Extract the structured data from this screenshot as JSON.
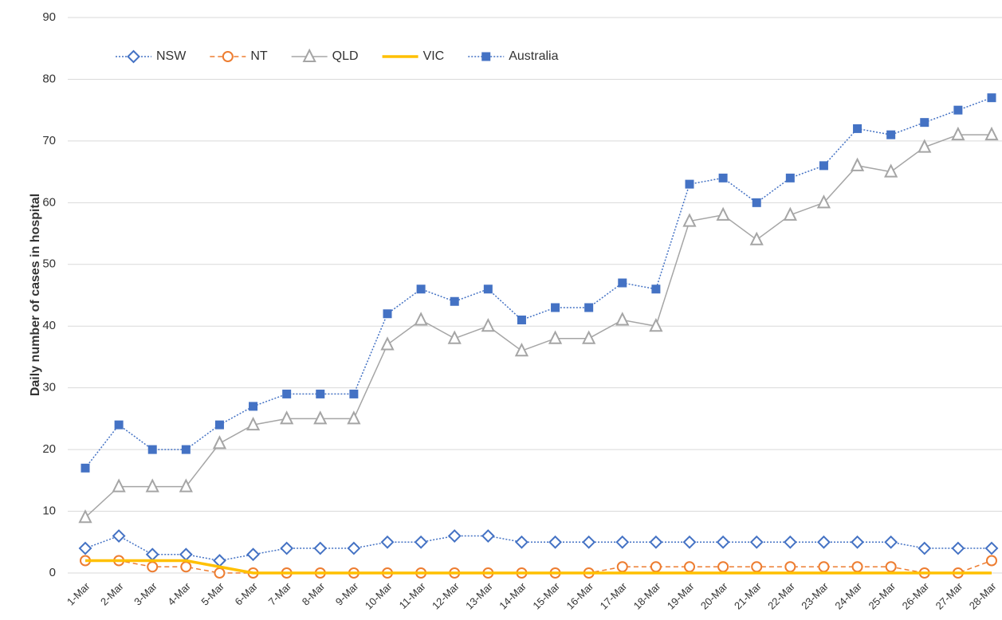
{
  "chart_data": {
    "type": "line",
    "y_label": "Daily number of cases in hospital",
    "categories": [
      "1-Mar",
      "2-Mar",
      "3-Mar",
      "4-Mar",
      "5-Mar",
      "6-Mar",
      "7-Mar",
      "8-Mar",
      "9-Mar",
      "10-Mar",
      "11-Mar",
      "12-Mar",
      "13-Mar",
      "14-Mar",
      "15-Mar",
      "16-Mar",
      "17-Mar",
      "18-Mar",
      "19-Mar",
      "20-Mar",
      "21-Mar",
      "22-Mar",
      "23-Mar",
      "24-Mar",
      "25-Mar",
      "26-Mar",
      "27-Mar",
      "28-Mar"
    ],
    "series": [
      {
        "name": "NSW",
        "color": "#4472c4",
        "dash": "dotted",
        "marker": "diamond",
        "values": [
          4,
          6,
          3,
          3,
          2,
          3,
          4,
          4,
          4,
          5,
          5,
          6,
          6,
          5,
          5,
          5,
          5,
          5,
          5,
          5,
          5,
          5,
          5,
          5,
          5,
          4,
          4,
          4
        ]
      },
      {
        "name": "NT",
        "color": "#ed7d31",
        "dash": "dashed",
        "marker": "circle",
        "values": [
          2,
          2,
          1,
          1,
          0,
          0,
          0,
          0,
          0,
          0,
          0,
          0,
          0,
          0,
          0,
          0,
          1,
          1,
          1,
          1,
          1,
          1,
          1,
          1,
          1,
          0,
          0,
          2
        ]
      },
      {
        "name": "QLD",
        "color": "#a5a5a5",
        "dash": "solid",
        "marker": "triangle",
        "values": [
          9,
          14,
          14,
          14,
          21,
          24,
          25,
          25,
          25,
          37,
          41,
          38,
          40,
          36,
          38,
          38,
          41,
          40,
          57,
          58,
          54,
          58,
          60,
          66,
          65,
          69,
          71,
          71
        ]
      },
      {
        "name": "VIC",
        "color": "#ffc000",
        "dash": "solid",
        "marker": "none",
        "values": [
          2,
          2,
          2,
          2,
          1,
          0,
          0,
          0,
          0,
          0,
          0,
          0,
          0,
          0,
          0,
          0,
          0,
          0,
          0,
          0,
          0,
          0,
          0,
          0,
          0,
          0,
          0,
          0
        ]
      },
      {
        "name": "Australia",
        "color": "#4472c4",
        "dash": "dotted",
        "marker": "square",
        "values": [
          17,
          24,
          20,
          20,
          24,
          27,
          29,
          29,
          29,
          42,
          46,
          44,
          46,
          41,
          43,
          43,
          47,
          46,
          63,
          64,
          60,
          64,
          66,
          72,
          71,
          73,
          75,
          77
        ]
      }
    ],
    "ylim": [
      0,
      90
    ],
    "yticks": [
      0,
      10,
      20,
      30,
      40,
      50,
      60,
      70,
      80,
      90
    ],
    "grid": true,
    "legend": "top"
  }
}
